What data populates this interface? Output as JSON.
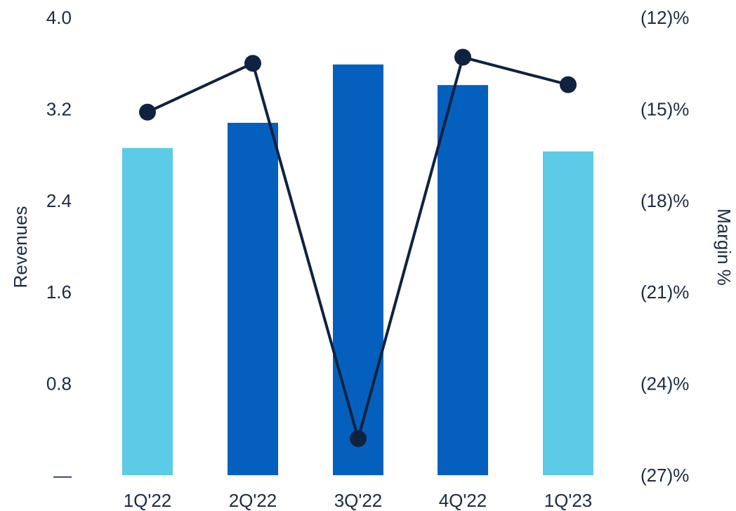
{
  "chart_data": {
    "type": "bar",
    "categories": [
      "1Q'22",
      "2Q'22",
      "3Q'22",
      "4Q'22",
      "1Q'23"
    ],
    "series": [
      {
        "type": "bar",
        "axis": "left",
        "values": [
          2.86,
          3.08,
          3.59,
          3.41,
          2.83
        ],
        "colors": [
          "#5ccbe8",
          "#0560bd",
          "#0560bd",
          "#0560bd",
          "#5ccbe8"
        ]
      },
      {
        "type": "line",
        "axis": "right",
        "values": [
          -15.1,
          -13.5,
          -25.8,
          -13.3,
          -14.2
        ],
        "color": "#0f2240"
      }
    ],
    "ylabel": "Revenues",
    "ylabel_right": "Margin %",
    "ylim": [
      0,
      4.0
    ],
    "ylim_right": [
      -27,
      -12
    ],
    "yticks": [
      {
        "value": 0,
        "label": "—"
      },
      {
        "value": 0.8,
        "label": "0.8"
      },
      {
        "value": 1.6,
        "label": "1.6"
      },
      {
        "value": 2.4,
        "label": "2.4"
      },
      {
        "value": 3.2,
        "label": "3.2"
      },
      {
        "value": 4.0,
        "label": "4.0"
      }
    ],
    "yticks_right": [
      {
        "value": -27,
        "label": "(27)%"
      },
      {
        "value": -24,
        "label": "(24)%"
      },
      {
        "value": -21,
        "label": "(21)%"
      },
      {
        "value": -18,
        "label": "(18)%"
      },
      {
        "value": -15,
        "label": "(15)%"
      },
      {
        "value": -12,
        "label": "(12)%"
      }
    ],
    "grid": false,
    "text_color": "#1b2b45"
  }
}
